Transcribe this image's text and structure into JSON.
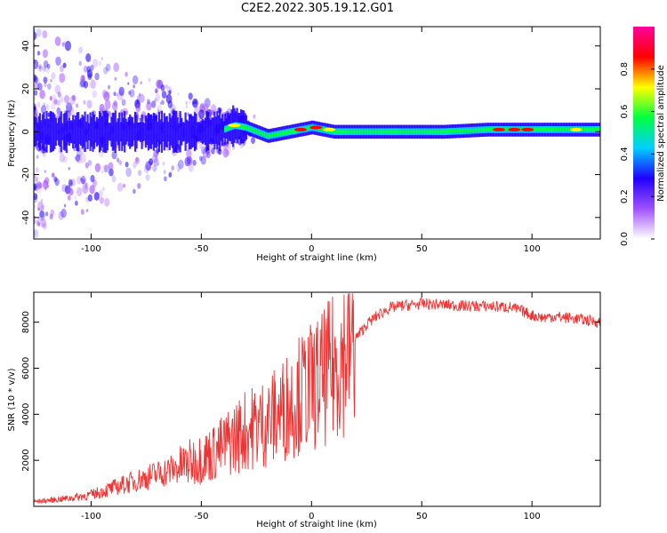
{
  "title": "C2E2.2022.305.19.12.G01",
  "chart_data": [
    {
      "type": "heatmap",
      "xlabel": "Height of straight line (km)",
      "ylabel": "Frequency (Hz)",
      "xlim": [
        -126,
        131
      ],
      "ylim": [
        -50,
        49
      ],
      "xticks": [
        -100,
        -50,
        0,
        50,
        100
      ],
      "yticks": [
        -40,
        -20,
        0,
        20,
        40
      ],
      "colorbar": {
        "label": "Normalized spectral amplitude",
        "range": [
          0,
          1
        ],
        "ticks": [
          0.0,
          0.2,
          0.4,
          0.6,
          0.8
        ],
        "colors": [
          "#ffffff",
          "#a050ff",
          "#2000ff",
          "#00d0ff",
          "#00ff40",
          "#ffff00",
          "#ff0000",
          "#ff00a0"
        ]
      },
      "ridge": {
        "x": [
          -120,
          -100,
          -80,
          -60,
          -50,
          -40,
          -35,
          -30,
          -25,
          -20,
          -15,
          -10,
          -5,
          0,
          5,
          10,
          20,
          40,
          60,
          80,
          90,
          100,
          110,
          131
        ],
        "y": [
          0,
          0,
          0,
          0,
          0,
          1,
          3,
          2,
          0,
          -2,
          -1,
          0,
          1,
          2,
          1,
          0,
          0,
          0,
          0,
          1,
          1,
          1,
          1,
          1
        ]
      }
    },
    {
      "type": "line",
      "xlabel": "Height of straight line (km)",
      "ylabel": "SNR (10 * v/v)",
      "xlim": [
        -126,
        131
      ],
      "ylim": [
        0,
        9300
      ],
      "xticks": [
        -100,
        -50,
        0,
        50,
        100
      ],
      "yticks": [
        2000,
        4000,
        6000,
        8000
      ],
      "color": "#ee3333",
      "x": [
        -126,
        -110,
        -100,
        -90,
        -80,
        -70,
        -60,
        -50,
        -45,
        -40,
        -35,
        -30,
        -25,
        -20,
        -15,
        -10,
        -5,
        0,
        5,
        10,
        15,
        20,
        25,
        30,
        35,
        40,
        50,
        60,
        70,
        80,
        90,
        95,
        100,
        105,
        110,
        120,
        131
      ],
      "y": [
        200,
        350,
        500,
        800,
        1100,
        1400,
        1700,
        2100,
        2300,
        2600,
        3000,
        3300,
        3500,
        3700,
        4000,
        4500,
        4900,
        5200,
        5500,
        6000,
        6700,
        7300,
        7900,
        8300,
        8600,
        8700,
        8800,
        8750,
        8700,
        8700,
        8650,
        8500,
        8300,
        8200,
        8250,
        8150,
        8000
      ]
    }
  ]
}
